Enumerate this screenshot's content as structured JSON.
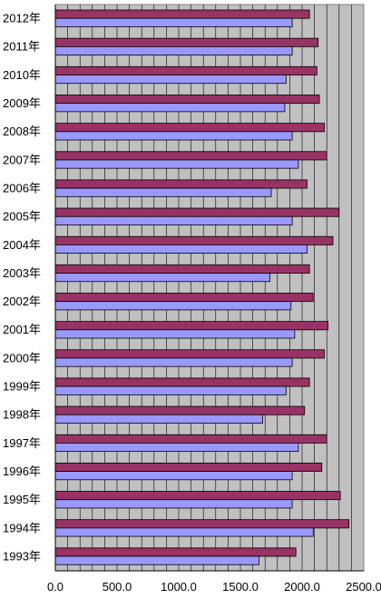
{
  "chart_data": {
    "type": "bar",
    "orientation": "horizontal",
    "categories": [
      "2012年",
      "2011年",
      "2010年",
      "2009年",
      "2008年",
      "2007年",
      "2006年",
      "2005年",
      "2004年",
      "2003年",
      "2002年",
      "2001年",
      "2000年",
      "1999年",
      "1998年",
      "1997年",
      "1996年",
      "1995年",
      "1994年",
      "1993年"
    ],
    "series": [
      {
        "values": [
          2060,
          2130,
          2120,
          2140,
          2180,
          2200,
          2040,
          2300,
          2250,
          2060,
          2090,
          2210,
          2180,
          2060,
          2020,
          2200,
          2160,
          2310,
          2380,
          1950
        ],
        "color": "#993366"
      },
      {
        "values": [
          1920,
          1920,
          1870,
          1860,
          1920,
          1970,
          1750,
          1920,
          2040,
          1740,
          1910,
          1940,
          1920,
          1870,
          1680,
          1970,
          1920,
          1920,
          2090,
          1650
        ],
        "color": "#9999ff"
      }
    ],
    "xlim": [
      0,
      2500
    ],
    "xticks": [
      "0.0",
      "500.0",
      "1000.0",
      "1500.0",
      "2000.0",
      "2500.0"
    ],
    "grid": true,
    "plot_background": "#c0c0c0",
    "legend": "none"
  }
}
